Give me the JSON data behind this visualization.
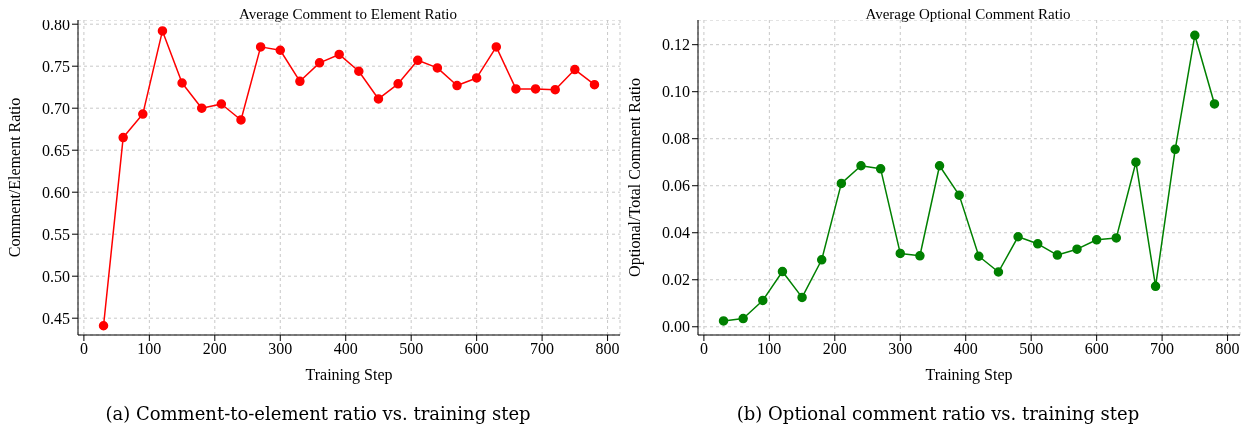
{
  "chart_data": [
    {
      "type": "line",
      "title": "Average Comment to Element Ratio",
      "xlabel": "Training Step",
      "ylabel": "Comment/Element Ratio",
      "x": [
        30,
        60,
        90,
        120,
        150,
        180,
        210,
        240,
        270,
        300,
        330,
        360,
        390,
        420,
        450,
        480,
        510,
        540,
        570,
        600,
        630,
        660,
        690,
        720,
        750,
        780
      ],
      "series": [
        {
          "color": "#ff0000",
          "values": [
            0.441,
            0.665,
            0.693,
            0.792,
            0.73,
            0.7,
            0.705,
            0.686,
            0.773,
            0.769,
            0.732,
            0.754,
            0.764,
            0.744,
            0.711,
            0.729,
            0.757,
            0.748,
            0.727,
            0.736,
            0.773,
            0.723,
            0.723,
            0.722,
            0.746,
            0.728
          ]
        }
      ],
      "xlim": [
        -9,
        819
      ],
      "xticks": [
        0,
        100,
        200,
        300,
        400,
        500,
        600,
        700,
        800
      ],
      "ylim": [
        0.43,
        0.805
      ],
      "yticks": [
        {
          "value": 0.45,
          "label": "0.45"
        },
        {
          "value": 0.5,
          "label": "0.50"
        },
        {
          "value": 0.55,
          "label": "0.55"
        },
        {
          "value": 0.6,
          "label": "0.60"
        },
        {
          "value": 0.65,
          "label": "0.65"
        },
        {
          "value": 0.7,
          "label": "0.70"
        },
        {
          "value": 0.75,
          "label": "0.75"
        },
        {
          "value": 0.8,
          "label": "0.80"
        }
      ],
      "grid": true,
      "marker": "circle",
      "line_style": "solid",
      "annotations": [
        "(a) Comment-to-element ratio vs. training step"
      ]
    },
    {
      "type": "line",
      "title": "Average Optional Comment Ratio",
      "xlabel": "Training Step",
      "ylabel": "Optional/Total Comment Ratio",
      "x": [
        30,
        60,
        90,
        120,
        150,
        180,
        210,
        240,
        270,
        300,
        330,
        360,
        390,
        420,
        450,
        480,
        510,
        540,
        570,
        600,
        630,
        660,
        690,
        720,
        750,
        780
      ],
      "series": [
        {
          "color": "#008000",
          "values": [
            0.0025,
            0.0035,
            0.0112,
            0.0235,
            0.0125,
            0.0285,
            0.061,
            0.0685,
            0.0672,
            0.0312,
            0.0302,
            0.0685,
            0.056,
            0.03,
            0.0233,
            0.0383,
            0.0353,
            0.0305,
            0.033,
            0.037,
            0.0378,
            0.07,
            0.0172,
            0.0755,
            0.124,
            0.0948
          ]
        }
      ],
      "xlim": [
        -9,
        819
      ],
      "xticks": [
        0,
        100,
        200,
        300,
        400,
        500,
        600,
        700,
        800
      ],
      "ylim": [
        -0.0035,
        0.1305
      ],
      "yticks": [
        {
          "value": 0,
          "label": "0.00"
        },
        {
          "value": 0.02,
          "label": "0.02"
        },
        {
          "value": 0.04,
          "label": "0.04"
        },
        {
          "value": 0.06,
          "label": "0.06"
        },
        {
          "value": 0.08,
          "label": "0.08"
        },
        {
          "value": 0.1,
          "label": "0.10"
        },
        {
          "value": 0.12,
          "label": "0.12"
        }
      ],
      "grid": true,
      "marker": "circle",
      "line_style": "solid",
      "annotations": [
        "(b) Optional comment ratio vs. training step"
      ]
    }
  ]
}
